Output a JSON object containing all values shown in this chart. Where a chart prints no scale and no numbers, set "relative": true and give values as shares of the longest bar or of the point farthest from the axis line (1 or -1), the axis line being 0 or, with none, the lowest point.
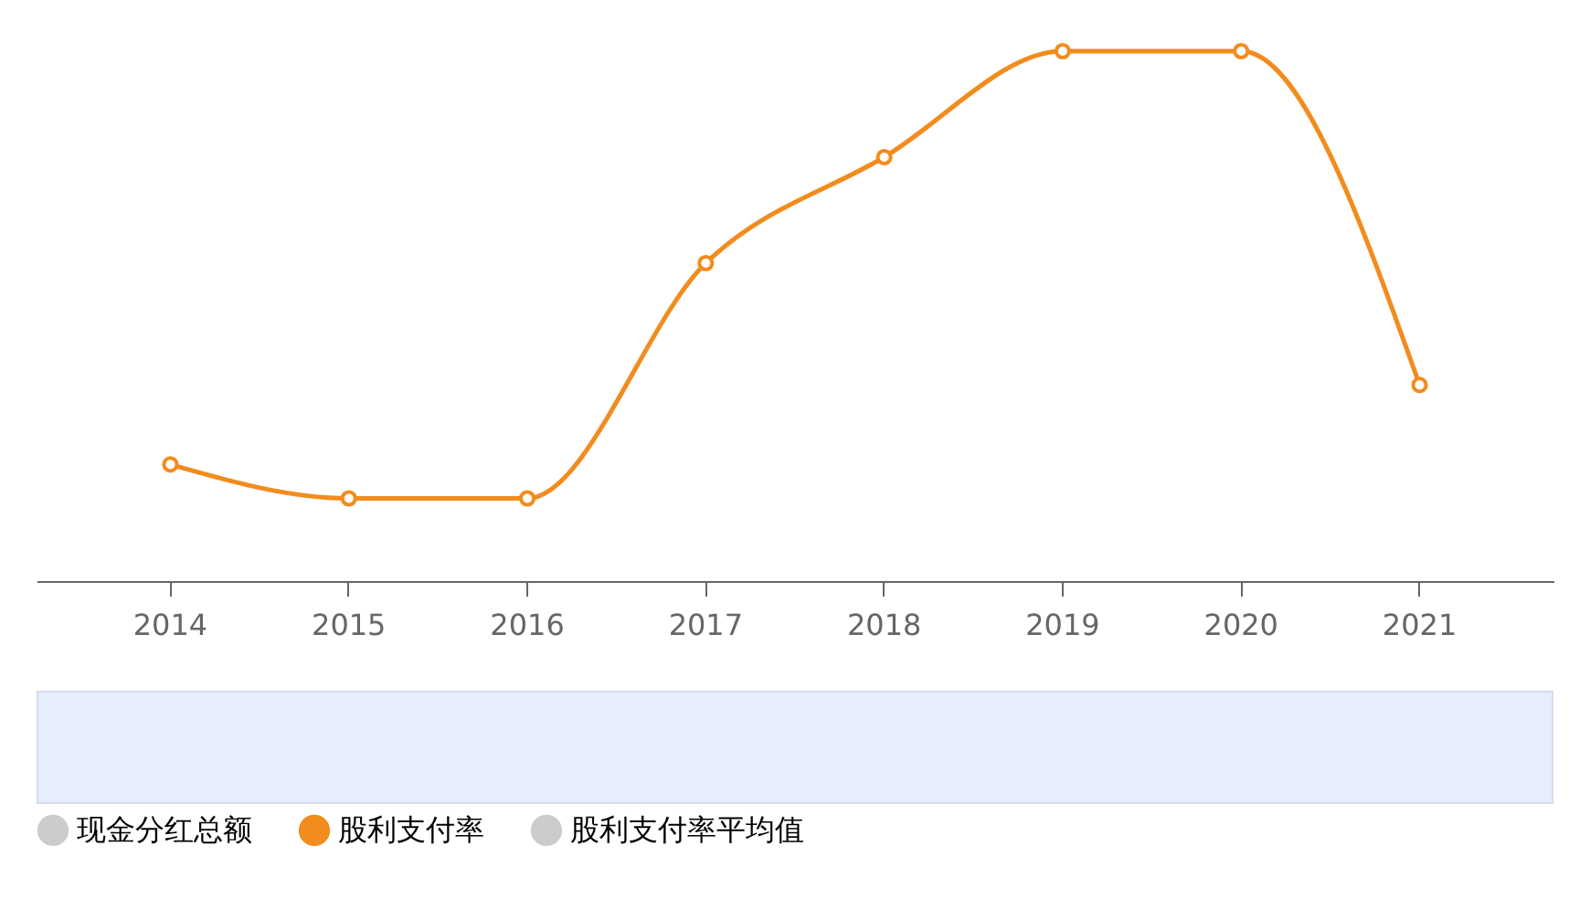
{
  "chart_data": {
    "type": "line",
    "relative": true,
    "categories": [
      "2014",
      "2015",
      "2016",
      "2017",
      "2018",
      "2019",
      "2020",
      "2021"
    ],
    "series": [
      {
        "name": "现金分红总额",
        "color": "#cccccc",
        "type": "bar",
        "values": [
          null,
          null,
          null,
          null,
          null,
          null,
          null,
          null
        ]
      },
      {
        "name": "股利支付率",
        "color": "#f28c1e",
        "values": [
          0.22,
          0.156,
          0.156,
          0.6,
          0.8,
          1,
          1,
          0.37
        ]
      },
      {
        "name": "股利支付率平均值",
        "color": "#cccccc",
        "values": [
          null,
          null,
          null,
          null,
          null,
          null,
          null,
          null
        ]
      }
    ],
    "marker": "circle",
    "legend": "bottom"
  }
}
